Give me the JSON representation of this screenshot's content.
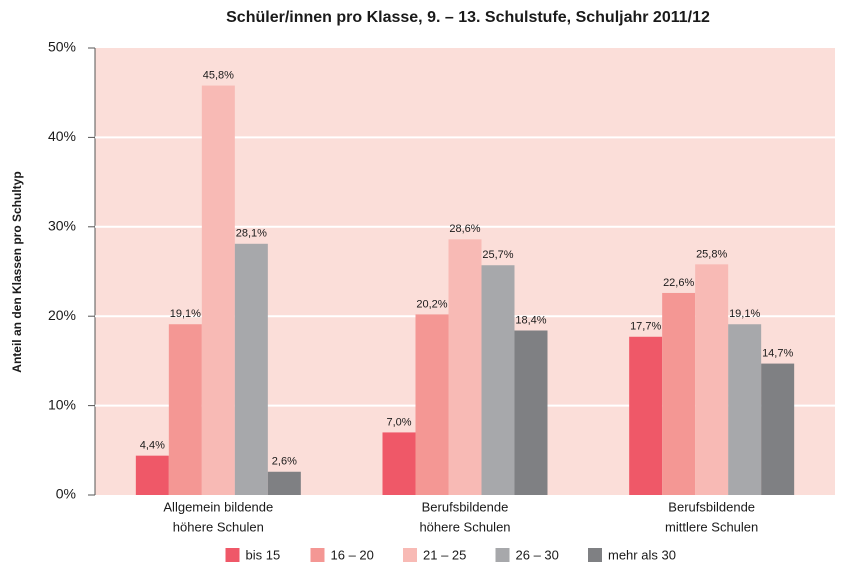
{
  "chart_data": {
    "type": "bar",
    "title": "Schüler/innen pro Klasse, 9. – 13. Schulstufe, Schuljahr 2011/12",
    "y_label": "Anteil an den Klassen pro Schultyp",
    "categories": [
      [
        "Allgemein bildende",
        "höhere Schulen"
      ],
      [
        "Berufsbildende",
        "höhere Schulen"
      ],
      [
        "Berufsbildende",
        "mittlere Schulen"
      ]
    ],
    "series": [
      {
        "name": "bis 15",
        "color": "#ef5868",
        "values": [
          4.4,
          7.0,
          17.7
        ],
        "value_labels": [
          "4,4%",
          "7,0%",
          "17,7%"
        ]
      },
      {
        "name": "16 – 20",
        "color": "#f49794",
        "values": [
          19.1,
          20.2,
          22.6
        ],
        "value_labels": [
          "19,1%",
          "20,2%",
          "22,6%"
        ]
      },
      {
        "name": "21 – 25",
        "color": "#f8bab5",
        "values": [
          45.8,
          28.6,
          25.8
        ],
        "value_labels": [
          "45,8%",
          "28,6%",
          "25,8%"
        ]
      },
      {
        "name": "26 – 30",
        "color": "#a7a8ab",
        "values": [
          28.1,
          25.7,
          19.1
        ],
        "value_labels": [
          "28,1%",
          "25,7%",
          "19,1%"
        ]
      },
      {
        "name": "mehr als 30",
        "color": "#7f8083",
        "values": [
          2.6,
          18.4,
          14.7
        ],
        "value_labels": [
          "2,6%",
          "18,4%",
          "14,7%"
        ]
      }
    ],
    "ylim": [
      0,
      50
    ],
    "yticks": [
      {
        "value": 0,
        "label": "0%"
      },
      {
        "value": 10,
        "label": "10%"
      },
      {
        "value": 20,
        "label": "20%"
      },
      {
        "value": 30,
        "label": "30%"
      },
      {
        "value": 40,
        "label": "40%"
      },
      {
        "value": 50,
        "label": "50%"
      }
    ],
    "grid": true,
    "legend": "bottom"
  }
}
